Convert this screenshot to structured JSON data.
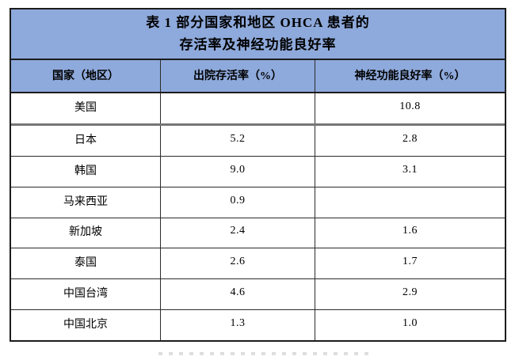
{
  "table": {
    "title_line1": "表 1 部分国家和地区 OHCA 患者的",
    "title_line2": "存活率及神经功能良好率",
    "columns": [
      "国家（地区）",
      "出院存活率（%）",
      "神经功能良好率（%）"
    ],
    "rows": [
      {
        "country": "美国",
        "survival": "",
        "neuro": "10.8"
      },
      {
        "country": "日本",
        "survival": "5.2",
        "neuro": "2.8"
      },
      {
        "country": "韩国",
        "survival": "9.0",
        "neuro": "3.1"
      },
      {
        "country": "马来西亚",
        "survival": "0.9",
        "neuro": ""
      },
      {
        "country": "新加坡",
        "survival": "2.4",
        "neuro": "1.6"
      },
      {
        "country": "泰国",
        "survival": "2.6",
        "neuro": "1.7"
      },
      {
        "country": "中国台湾",
        "survival": "4.6",
        "neuro": "2.9"
      },
      {
        "country": "中国北京",
        "survival": "1.3",
        "neuro": "1.0"
      }
    ],
    "colors": {
      "header_bg": "#8EA9DB",
      "border_dark": "#1c1c1c",
      "border_gray": "#757575",
      "text": "#000000"
    }
  }
}
